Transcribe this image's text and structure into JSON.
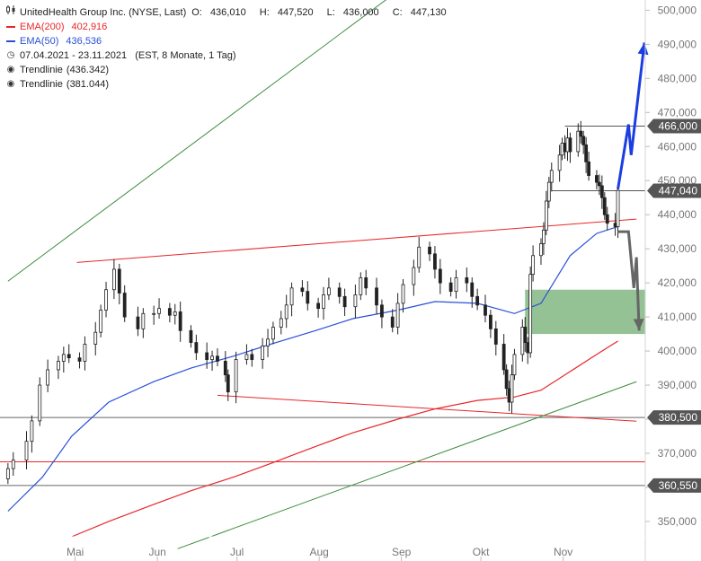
{
  "legend": {
    "icon": "candlestick-icon",
    "title": "UnitedHealth Group Inc. (NYSE, Last)",
    "ohlc": {
      "o_label": "O:",
      "o": "436,010",
      "h_label": "H:",
      "h": "447,520",
      "l_label": "L:",
      "l": "436,000",
      "c_label": "C:",
      "c": "447,130"
    },
    "ema200_label": "EMA(200)",
    "ema200_value": "402,916",
    "ema200_color": "#e8262a",
    "ema50_label": "EMA(50)",
    "ema50_value": "436,536",
    "ema50_color": "#2a50d8",
    "period": "07.04.2021 - 23.11.2021   (EST, 8 Monate, 1 Tag)",
    "trend1_label": "Trendlinie",
    "trend1_value": "(436.342)",
    "trend2_label": "Trendlinie",
    "trend2_value": "(381.044)"
  },
  "chart_data": {
    "type": "candlestick",
    "title": "UnitedHealth Group Inc. (NYSE, Last)",
    "y_ticks": [
      350000,
      360000,
      370000,
      380000,
      390000,
      400000,
      410000,
      420000,
      430000,
      440000,
      450000,
      460000,
      470000,
      480000,
      490000,
      500000
    ],
    "y_tick_labels": [
      "350,000",
      "360,000",
      "370,000",
      "380,000",
      "390,000",
      "400,000",
      "410,000",
      "420,000",
      "430,000",
      "440,000",
      "450,000",
      "460,000",
      "470,000",
      "480,000",
      "490,000",
      "500,000"
    ],
    "ylim": [
      345500,
      503000
    ],
    "x_labels": [
      "Mai",
      "Jun",
      "Jul",
      "Aug",
      "Sep",
      "Okt",
      "Nov"
    ],
    "x_label_dates": [
      "2021-05-01",
      "2021-06-01",
      "2021-07-01",
      "2021-08-01",
      "2021-09-01",
      "2021-10-01",
      "2021-11-01"
    ],
    "date_range": [
      "2021-04-07",
      "2021-11-23"
    ],
    "close_series": [
      [
        "2021-04-07",
        365500
      ],
      [
        "2021-04-09",
        368000
      ],
      [
        "2021-04-14",
        373500
      ],
      [
        "2021-04-16",
        379500
      ],
      [
        "2021-04-19",
        390000
      ],
      [
        "2021-04-22",
        394500
      ],
      [
        "2021-04-26",
        397000
      ],
      [
        "2021-04-28",
        399000
      ],
      [
        "2021-04-30",
        398000
      ],
      [
        "2021-05-04",
        397000
      ],
      [
        "2021-05-06",
        402000
      ],
      [
        "2021-05-10",
        405500
      ],
      [
        "2021-05-12",
        412000
      ],
      [
        "2021-05-14",
        418000
      ],
      [
        "2021-05-17",
        424000
      ],
      [
        "2021-05-19",
        417000
      ],
      [
        "2021-05-21",
        410000
      ],
      [
        "2021-05-26",
        406500
      ],
      [
        "2021-05-28",
        411000
      ],
      [
        "2021-06-01",
        411000
      ],
      [
        "2021-06-03",
        412500
      ],
      [
        "2021-06-07",
        410500
      ],
      [
        "2021-06-09",
        411500
      ],
      [
        "2021-06-11",
        406000
      ],
      [
        "2021-06-15",
        402500
      ],
      [
        "2021-06-17",
        399500
      ],
      [
        "2021-06-21",
        397500
      ],
      [
        "2021-06-23",
        398500
      ],
      [
        "2021-06-25",
        397000
      ],
      [
        "2021-06-28",
        393000
      ],
      [
        "2021-06-29",
        388000
      ],
      [
        "2021-07-02",
        397500
      ],
      [
        "2021-07-06",
        399000
      ],
      [
        "2021-07-08",
        397500
      ],
      [
        "2021-07-12",
        401500
      ],
      [
        "2021-07-14",
        403500
      ],
      [
        "2021-07-16",
        407000
      ],
      [
        "2021-07-19",
        409500
      ],
      [
        "2021-07-21",
        413500
      ],
      [
        "2021-07-23",
        418500
      ],
      [
        "2021-07-27",
        417500
      ],
      [
        "2021-07-29",
        414000
      ],
      [
        "2021-08-02",
        412500
      ],
      [
        "2021-08-04",
        416500
      ],
      [
        "2021-08-06",
        418500
      ],
      [
        "2021-08-10",
        416000
      ],
      [
        "2021-08-12",
        413000
      ],
      [
        "2021-08-16",
        416500
      ],
      [
        "2021-08-18",
        421500
      ],
      [
        "2021-08-20",
        418500
      ],
      [
        "2021-08-24",
        413500
      ],
      [
        "2021-08-26",
        410000
      ],
      [
        "2021-08-30",
        407000
      ],
      [
        "2021-09-01",
        414000
      ],
      [
        "2021-09-03",
        419500
      ],
      [
        "2021-09-07",
        424500
      ],
      [
        "2021-09-09",
        430500
      ],
      [
        "2021-09-13",
        428500
      ],
      [
        "2021-09-15",
        424000
      ],
      [
        "2021-09-17",
        420000
      ],
      [
        "2021-09-21",
        417500
      ],
      [
        "2021-09-23",
        421500
      ],
      [
        "2021-09-27",
        420000
      ],
      [
        "2021-09-29",
        416000
      ],
      [
        "2021-10-01",
        413500
      ],
      [
        "2021-10-04",
        410500
      ],
      [
        "2021-10-06",
        406500
      ],
      [
        "2021-10-08",
        402000
      ],
      [
        "2021-10-11",
        394500
      ],
      [
        "2021-10-12",
        389000
      ],
      [
        "2021-10-13",
        385000
      ],
      [
        "2021-10-14",
        393000
      ],
      [
        "2021-10-15",
        399000
      ],
      [
        "2021-10-18",
        407000
      ],
      [
        "2021-10-19",
        402500
      ],
      [
        "2021-10-20",
        399500
      ],
      [
        "2021-10-21",
        422500
      ],
      [
        "2021-10-22",
        428000
      ],
      [
        "2021-10-25",
        431500
      ],
      [
        "2021-10-26",
        435500
      ],
      [
        "2021-10-27",
        444000
      ],
      [
        "2021-10-28",
        449500
      ],
      [
        "2021-10-29",
        453000
      ],
      [
        "2021-11-01",
        457500
      ],
      [
        "2021-11-02",
        461000
      ],
      [
        "2021-11-03",
        458500
      ],
      [
        "2021-11-04",
        462500
      ],
      [
        "2021-11-05",
        458500
      ],
      [
        "2021-11-08",
        464500
      ],
      [
        "2021-11-09",
        463000
      ],
      [
        "2021-11-10",
        460500
      ],
      [
        "2021-11-11",
        455500
      ],
      [
        "2021-11-12",
        451500
      ],
      [
        "2021-11-15",
        449500
      ],
      [
        "2021-11-16",
        448500
      ],
      [
        "2021-11-17",
        445000
      ],
      [
        "2021-11-18",
        440000
      ],
      [
        "2021-11-19",
        437500
      ],
      [
        "2021-11-22",
        436500
      ],
      [
        "2021-11-23",
        447130
      ]
    ],
    "ema50_series": [
      [
        "2021-04-07",
        353000
      ],
      [
        "2021-04-20",
        363000
      ],
      [
        "2021-05-01",
        375000
      ],
      [
        "2021-05-15",
        385000
      ],
      [
        "2021-06-01",
        391000
      ],
      [
        "2021-06-15",
        395000
      ],
      [
        "2021-07-01",
        398500
      ],
      [
        "2021-07-15",
        402000
      ],
      [
        "2021-08-01",
        406000
      ],
      [
        "2021-08-15",
        409500
      ],
      [
        "2021-09-01",
        412000
      ],
      [
        "2021-09-15",
        414500
      ],
      [
        "2021-10-01",
        414000
      ],
      [
        "2021-10-15",
        411000
      ],
      [
        "2021-10-25",
        414000
      ],
      [
        "2021-11-05",
        428000
      ],
      [
        "2021-11-15",
        434500
      ],
      [
        "2021-11-23",
        436536
      ]
    ],
    "ema200_series": [
      [
        "2021-05-01",
        345500
      ],
      [
        "2021-05-15",
        350000
      ],
      [
        "2021-06-01",
        355000
      ],
      [
        "2021-06-15",
        359000
      ],
      [
        "2021-07-01",
        363000
      ],
      [
        "2021-07-15",
        367000
      ],
      [
        "2021-08-01",
        372000
      ],
      [
        "2021-08-15",
        376000
      ],
      [
        "2021-09-01",
        380000
      ],
      [
        "2021-09-15",
        383000
      ],
      [
        "2021-10-01",
        385500
      ],
      [
        "2021-10-15",
        386500
      ],
      [
        "2021-10-25",
        388500
      ],
      [
        "2021-11-05",
        394000
      ],
      [
        "2021-11-15",
        399000
      ],
      [
        "2021-11-23",
        402916
      ]
    ],
    "horizontal_levels": [
      {
        "value": 466000,
        "label": "466,000",
        "tag_color": "#555555",
        "line_color": "#555555"
      },
      {
        "value": 447040,
        "label": "447,040",
        "tag_color": "#555555",
        "line_color": "#555555"
      },
      {
        "value": 380500,
        "label": "380,500",
        "tag_color": "#555555",
        "line_color": "#666666"
      },
      {
        "value": 360550,
        "label": "360,550",
        "tag_color": "#555555",
        "line_color": "#666666"
      },
      {
        "value": 367500,
        "label": "",
        "line_color": "#e8262a"
      }
    ],
    "trendlines": [
      {
        "color": "#e8262a",
        "from": [
          "2021-05-03",
          426000
        ],
        "to": [
          "2021-11-30",
          438700
        ]
      },
      {
        "color": "#e8262a",
        "from": [
          "2021-06-25",
          387000
        ],
        "to": [
          "2021-11-30",
          379400
        ]
      },
      {
        "color": "#3c8c3c",
        "from": [
          "2021-04-07",
          420500
        ],
        "to": [
          "2021-09-12",
          512000
        ]
      },
      {
        "color": "#3c8c3c",
        "from": [
          "2021-06-10",
          342000
        ],
        "to": [
          "2021-11-30",
          391000
        ]
      }
    ],
    "zone": {
      "from": "2021-10-19",
      "to": "2021-11-30",
      "low": 405000,
      "high": 418000,
      "color": "#8fbf8f"
    },
    "scenario_bullish": {
      "color": "#1b3ee0",
      "points": [
        [
          "2021-11-23",
          447500
        ],
        [
          "2021-11-27",
          466500
        ],
        [
          "2021-11-28",
          457500
        ],
        [
          "2021-12-03",
          490500
        ]
      ]
    },
    "scenario_bearish": {
      "color": "#666666",
      "points": [
        [
          "2021-11-23",
          435000
        ],
        [
          "2021-11-27",
          435000
        ],
        [
          "2021-11-29",
          418500
        ],
        [
          "2021-11-30",
          427500
        ],
        [
          "2021-12-01",
          406000
        ]
      ]
    }
  }
}
